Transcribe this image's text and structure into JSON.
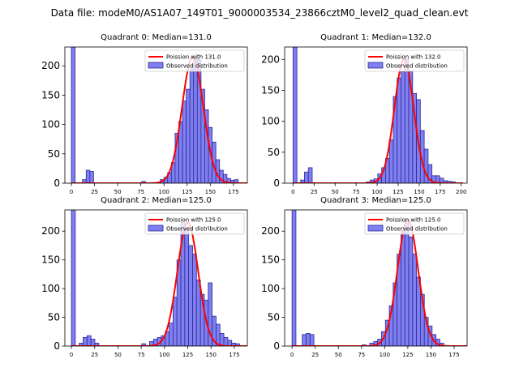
{
  "suptitle": "Data file: modeM0/AS1A07_149T01_9000003534_23866cztM0_level2_quad_clean.evt",
  "colors": {
    "bar_fill": "#7f7ff0",
    "bar_edge": "#2a2a9a",
    "curve": "#ff0000"
  },
  "chart_data": [
    {
      "type": "bar",
      "title": "Quadrant 0: Median=131.0",
      "median": 131.0,
      "xlim": [
        -7,
        190
      ],
      "ylim": [
        0,
        232
      ],
      "xticks": [
        0,
        25,
        50,
        75,
        100,
        125,
        150,
        175
      ],
      "yticks": [
        0,
        50,
        100,
        150,
        200
      ],
      "bin_width": 4,
      "legend": {
        "placement": "upper right",
        "curve_label": "Poission with 131.0",
        "bars_label": "Observed distribution"
      },
      "bins": [
        {
          "x": 0,
          "count": 232
        },
        {
          "x": 12,
          "count": 6
        },
        {
          "x": 16,
          "count": 22
        },
        {
          "x": 20,
          "count": 20
        },
        {
          "x": 76,
          "count": 3
        },
        {
          "x": 96,
          "count": 6
        },
        {
          "x": 100,
          "count": 10
        },
        {
          "x": 104,
          "count": 18
        },
        {
          "x": 108,
          "count": 35
        },
        {
          "x": 112,
          "count": 85
        },
        {
          "x": 116,
          "count": 105
        },
        {
          "x": 120,
          "count": 140
        },
        {
          "x": 124,
          "count": 160
        },
        {
          "x": 128,
          "count": 195
        },
        {
          "x": 132,
          "count": 215
        },
        {
          "x": 136,
          "count": 210
        },
        {
          "x": 140,
          "count": 160
        },
        {
          "x": 144,
          "count": 125
        },
        {
          "x": 148,
          "count": 95
        },
        {
          "x": 152,
          "count": 70
        },
        {
          "x": 156,
          "count": 40
        },
        {
          "x": 160,
          "count": 22
        },
        {
          "x": 164,
          "count": 15
        },
        {
          "x": 168,
          "count": 8
        },
        {
          "x": 172,
          "count": 5
        },
        {
          "x": 176,
          "count": 6
        }
      ]
    },
    {
      "type": "bar",
      "title": "Quadrant 1: Median=132.0",
      "median": 132.0,
      "xlim": [
        -10,
        207
      ],
      "ylim": [
        0,
        220
      ],
      "xticks": [
        0,
        25,
        50,
        75,
        100,
        125,
        150,
        175,
        200
      ],
      "yticks": [
        0,
        50,
        100,
        150,
        200
      ],
      "bin_width": 4.6,
      "legend": {
        "placement": "upper right",
        "curve_label": "Poission with 132.0",
        "bars_label": "Observed distribution"
      },
      "bins": [
        {
          "x": 0,
          "count": 220
        },
        {
          "x": 9,
          "count": 5
        },
        {
          "x": 13.6,
          "count": 18
        },
        {
          "x": 18.2,
          "count": 25
        },
        {
          "x": 87,
          "count": 2
        },
        {
          "x": 91.6,
          "count": 5
        },
        {
          "x": 96.2,
          "count": 7
        },
        {
          "x": 100.8,
          "count": 15
        },
        {
          "x": 105.4,
          "count": 25
        },
        {
          "x": 110,
          "count": 40
        },
        {
          "x": 114.6,
          "count": 70
        },
        {
          "x": 119.2,
          "count": 140
        },
        {
          "x": 123.8,
          "count": 170
        },
        {
          "x": 128.4,
          "count": 180
        },
        {
          "x": 133,
          "count": 200
        },
        {
          "x": 137.6,
          "count": 180
        },
        {
          "x": 142.2,
          "count": 145
        },
        {
          "x": 146.8,
          "count": 135
        },
        {
          "x": 151.4,
          "count": 85
        },
        {
          "x": 156,
          "count": 55
        },
        {
          "x": 160.6,
          "count": 30
        },
        {
          "x": 165.2,
          "count": 12
        },
        {
          "x": 169.8,
          "count": 12
        },
        {
          "x": 174.4,
          "count": 8
        },
        {
          "x": 179,
          "count": 4
        },
        {
          "x": 183.6,
          "count": 3
        },
        {
          "x": 188.2,
          "count": 2
        }
      ]
    },
    {
      "type": "bar",
      "title": "Quadrant 2: Median=125.0",
      "median": 125.0,
      "xlim": [
        -7,
        189
      ],
      "ylim": [
        0,
        237
      ],
      "xticks": [
        0,
        25,
        50,
        75,
        100,
        125,
        150,
        175
      ],
      "yticks": [
        0,
        50,
        100,
        150,
        200
      ],
      "bin_width": 4.2,
      "legend": {
        "placement": "upper right",
        "curve_label": "Poission with 125.0",
        "bars_label": "Observed distribution"
      },
      "bins": [
        {
          "x": 0,
          "count": 237
        },
        {
          "x": 8.4,
          "count": 5
        },
        {
          "x": 12.6,
          "count": 15
        },
        {
          "x": 16.8,
          "count": 18
        },
        {
          "x": 21,
          "count": 12
        },
        {
          "x": 25.2,
          "count": 5
        },
        {
          "x": 75.6,
          "count": 4
        },
        {
          "x": 84,
          "count": 8
        },
        {
          "x": 88.2,
          "count": 12
        },
        {
          "x": 92.4,
          "count": 15
        },
        {
          "x": 96.6,
          "count": 18
        },
        {
          "x": 100.8,
          "count": 25
        },
        {
          "x": 105,
          "count": 40
        },
        {
          "x": 109.2,
          "count": 85
        },
        {
          "x": 113.4,
          "count": 150
        },
        {
          "x": 117.6,
          "count": 215
        },
        {
          "x": 121.8,
          "count": 205
        },
        {
          "x": 126,
          "count": 175
        },
        {
          "x": 130.2,
          "count": 160
        },
        {
          "x": 134.4,
          "count": 115
        },
        {
          "x": 138.6,
          "count": 90
        },
        {
          "x": 142.8,
          "count": 80
        },
        {
          "x": 147,
          "count": 110
        },
        {
          "x": 151.2,
          "count": 52
        },
        {
          "x": 155.4,
          "count": 38
        },
        {
          "x": 159.6,
          "count": 22
        },
        {
          "x": 163.8,
          "count": 15
        },
        {
          "x": 168,
          "count": 10
        },
        {
          "x": 172.2,
          "count": 5
        },
        {
          "x": 176.4,
          "count": 4
        }
      ]
    },
    {
      "type": "bar",
      "title": "Quadrant 3: Median=125.0",
      "median": 125.0,
      "xlim": [
        -8,
        189
      ],
      "ylim": [
        0,
        237
      ],
      "xticks": [
        0,
        25,
        50,
        75,
        100,
        125,
        150,
        175
      ],
      "yticks": [
        0,
        50,
        100,
        150,
        200
      ],
      "bin_width": 4.2,
      "legend": {
        "placement": "upper right",
        "curve_label": "Poission with 125.0",
        "bars_label": "Observed distribution"
      },
      "bins": [
        {
          "x": 0,
          "count": 237
        },
        {
          "x": 11,
          "count": 20
        },
        {
          "x": 15.2,
          "count": 22
        },
        {
          "x": 19.4,
          "count": 20
        },
        {
          "x": 75.6,
          "count": 2
        },
        {
          "x": 84,
          "count": 5
        },
        {
          "x": 88.2,
          "count": 8
        },
        {
          "x": 92.4,
          "count": 12
        },
        {
          "x": 96.6,
          "count": 25
        },
        {
          "x": 100.8,
          "count": 45
        },
        {
          "x": 105,
          "count": 70
        },
        {
          "x": 109.2,
          "count": 110
        },
        {
          "x": 113.4,
          "count": 160
        },
        {
          "x": 117.6,
          "count": 200
        },
        {
          "x": 121.8,
          "count": 220
        },
        {
          "x": 126,
          "count": 190
        },
        {
          "x": 130.2,
          "count": 160
        },
        {
          "x": 134.4,
          "count": 120
        },
        {
          "x": 138.6,
          "count": 90
        },
        {
          "x": 142.8,
          "count": 50
        },
        {
          "x": 147,
          "count": 35
        },
        {
          "x": 151.2,
          "count": 20
        },
        {
          "x": 155.4,
          "count": 12
        },
        {
          "x": 159.6,
          "count": 5
        }
      ]
    }
  ]
}
